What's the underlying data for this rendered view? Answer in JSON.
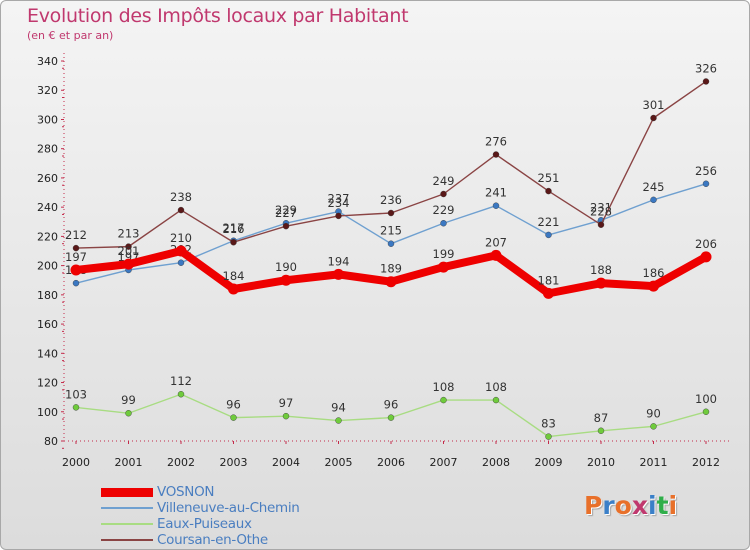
{
  "title": "Evolution des Impôts locaux par Habitant",
  "subtitle": "(en € et par an)",
  "logo": {
    "text": "Proxiti",
    "colors": [
      "#e8702a",
      "#3a7fc8",
      "#e8702a",
      "#c0386e",
      "#3a7fc8",
      "#2fae4a",
      "#e8702a"
    ]
  },
  "chart_data": {
    "type": "line",
    "title": "Evolution des Impôts locaux par Habitant",
    "subtitle": "(en € et par an)",
    "xlabel": "",
    "ylabel": "",
    "categories": [
      "2000",
      "2001",
      "2002",
      "2003",
      "2004",
      "2005",
      "2006",
      "2007",
      "2008",
      "2009",
      "2010",
      "2011",
      "2012"
    ],
    "ylim": [
      80,
      340
    ],
    "yticks": [
      80,
      100,
      120,
      140,
      160,
      180,
      200,
      220,
      240,
      260,
      280,
      300,
      320,
      340
    ],
    "grid": false,
    "legend_position": "bottom-left",
    "series": [
      {
        "name": "VOSNON",
        "color": "#ee0000",
        "dot": "#ee0000",
        "width": "thick",
        "values": [
          197,
          201,
          210,
          184,
          190,
          194,
          189,
          199,
          207,
          181,
          188,
          186,
          206
        ]
      },
      {
        "name": "Villeneuve-au-Chemin",
        "color": "#6fa0d0",
        "dot": "#3b78c2",
        "width": "thin",
        "values": [
          188,
          197,
          202,
          217,
          229,
          237,
          215,
          229,
          241,
          221,
          231,
          245,
          256
        ]
      },
      {
        "name": "Eaux-Puiseaux",
        "color": "#a8dc82",
        "dot": "#6fcb3c",
        "width": "thin",
        "values": [
          103,
          99,
          112,
          96,
          97,
          94,
          96,
          108,
          108,
          83,
          87,
          90,
          100
        ]
      },
      {
        "name": "Coursan-en-Othe",
        "color": "#8a4444",
        "dot": "#5a1818",
        "width": "thin",
        "values": [
          212,
          213,
          238,
          216,
          227,
          234,
          236,
          249,
          276,
          251,
          228,
          301,
          326
        ]
      }
    ]
  }
}
